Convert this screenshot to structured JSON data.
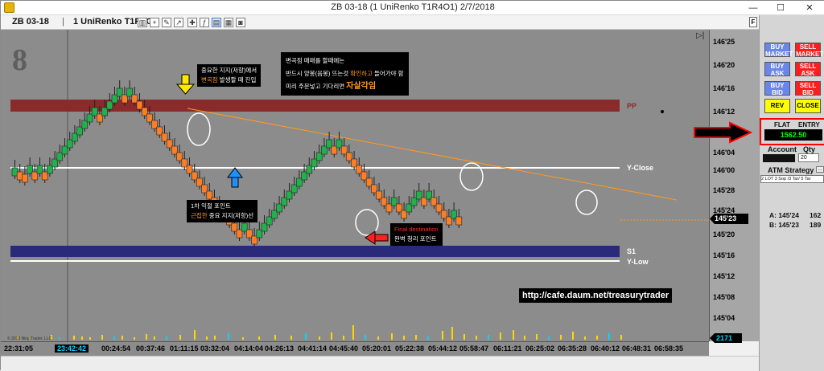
{
  "window": {
    "title": "ZB 03-18 (1 UniRenko T1R4O1)  2/7/2018",
    "min": "—",
    "max": "☐",
    "close": "✕"
  },
  "toolbar": {
    "instrument": "ZB 03-18",
    "separator": "|",
    "bar_type": "1 UniRenko T1R4O1"
  },
  "chart": {
    "watermark": "8",
    "levels": {
      "pp": "PP",
      "yclose": "Y-Close",
      "s1": "S1",
      "ylow": "Y-Low"
    },
    "annotations": {
      "a1_line1": "중요한 지지(저항)에서",
      "a1_line2_hl": "변곡점",
      "a1_line2_rest": " 발생할 때 진입",
      "a2_line1": "변곡점 매매를 할때에는",
      "a2_line2_a": "반드시 양봉(음봉) 뜨는것 ",
      "a2_line2_hl": "확인하고",
      "a2_line2_b": " 들어가야 함",
      "a2_line3_a": "미리 주문넣고 기다리면 ",
      "a2_line3_hl": "자살각임",
      "a3_line1": "1차 익절 포인트",
      "a3_line2_hl": "근접한",
      "a3_line2_rest": " 중요 지지(저항)선",
      "a4_line1": "Final destination",
      "a4_line2": "완벽 청리 포인트"
    },
    "url": "http://cafe.daum.net/treasurytrader",
    "copyright": "© 2018 NinjaTrader, LLC",
    "tabs_icon": "▷|",
    "f_button": "F",
    "colors": {
      "bull": "#22b14c",
      "bear": "#ff7f27",
      "pp_band": "#8b2a2a",
      "s1_band": "#2a2a7a",
      "trend": "#ff9a1f"
    }
  },
  "price_axis": {
    "labels": [
      "146'25",
      "146'20",
      "146'16",
      "146'12",
      "146'08",
      "146'04",
      "146'00",
      "145'28",
      "145'24",
      "145'20",
      "145'16",
      "145'12",
      "145'08",
      "145'04"
    ],
    "current_price": "145'23",
    "volume_label": "2171"
  },
  "time_axis": {
    "labels": [
      "22:31:05",
      "23:42:42",
      "00:24:54",
      "00:37:46",
      "01:11:15",
      "03:32:04",
      "04:14:04",
      "04:26:13",
      "04:41:14",
      "04:45:40",
      "05:20:01",
      "05:22:38",
      "05:44:12",
      "05:58:47",
      "06:11:21",
      "06:25:02",
      "06:35:28",
      "06:40:12",
      "06:48:31",
      "06:58:35"
    ],
    "highlight": "23:42:42"
  },
  "side_panel": {
    "buy_market": "BUY MARKET",
    "sell_market": "SELL MARKET",
    "buy_ask": "BUY ASK",
    "sell_ask": "SELL ASK",
    "buy_bid": "BUY BID",
    "sell_bid": "SELL BID",
    "rev": "REV",
    "close": "CLOSE",
    "flat": "FLAT",
    "entry": "ENTRY",
    "pnl": "1562.50",
    "account_label": "Account",
    "qty_label": "Qty",
    "qty_value": "20",
    "atm_label": "ATM Strategy",
    "atm_value": "2 LOT 3 Sop /3 Tar/ 5 Tar",
    "ask_label": "A: 145'24",
    "ask_size": "162",
    "bid_label": "B: 145'23",
    "bid_size": "189"
  }
}
